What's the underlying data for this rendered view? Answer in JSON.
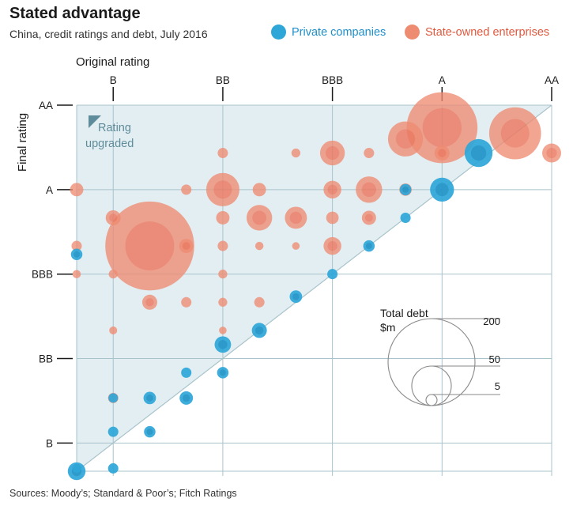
{
  "title": "Stated advantage",
  "subtitle": "China, credit ratings and debt, July 2016",
  "legend": {
    "private_label": "Private companies",
    "soe_label": "State-owned enterprises"
  },
  "colors": {
    "private": "#2EA6D8",
    "soe": "#EE8C72",
    "soe_core": "#E4513A",
    "region": "#E2EEF2",
    "text_teal": "#5F8C9A",
    "grid": "#A9C3CB",
    "title_blue": "#1E8FC9",
    "title_red": "#E0583E"
  },
  "source": "Sources: Moody’s; Standard & Poor’s; Fitch Ratings",
  "chart_data": {
    "type": "scatter",
    "title": "Stated advantage",
    "subtitle": "China, credit ratings and debt, July 2016",
    "xlabel": "Original rating",
    "ylabel": "Final rating",
    "x_ticks": [
      "B",
      "BB",
      "BBB",
      "A",
      "AA"
    ],
    "y_ticks": [
      "AA",
      "A",
      "BBB",
      "BB",
      "B"
    ],
    "rating_scale_note": "Positions are notch indices: 0=B-, 1=B, 2=B+, 3=BB-, 4=BB, 5=BB+, 6=BBB-, 7=BBB, 8=BBB+, 9=A-, 10=A, 11=A+, 12=AA-, 13=AA",
    "xlim": [
      0,
      13
    ],
    "ylim": [
      0,
      13
    ],
    "annotation": "Rating upgraded",
    "size_legend": {
      "title": "Total debt",
      "unit": "$m",
      "values": [
        200,
        50,
        5
      ],
      "labels": [
        "200",
        "50",
        "5"
      ]
    },
    "series": [
      {
        "name": "Private companies",
        "points": [
          {
            "x": 0,
            "y": 0,
            "size": 6
          },
          {
            "x": 0,
            "y": 0.1,
            "size": 1
          },
          {
            "x": 1,
            "y": 0.1,
            "size": 1.5
          },
          {
            "x": 0,
            "y": 7.7,
            "size": 2
          },
          {
            "x": 1,
            "y": 1.4,
            "size": 1.5
          },
          {
            "x": 2,
            "y": 1.4,
            "size": 2
          },
          {
            "x": 2,
            "y": 2.6,
            "size": 2.5
          },
          {
            "x": 3,
            "y": 2.6,
            "size": 3
          },
          {
            "x": 3,
            "y": 3.5,
            "size": 1.5
          },
          {
            "x": 4,
            "y": 3.5,
            "size": 2
          },
          {
            "x": 1,
            "y": 2.6,
            "size": 1.2
          },
          {
            "x": 4,
            "y": 4.5,
            "size": 5
          },
          {
            "x": 5,
            "y": 5,
            "size": 4
          },
          {
            "x": 6,
            "y": 6.2,
            "size": 2.5
          },
          {
            "x": 7,
            "y": 7,
            "size": 1.5
          },
          {
            "x": 8,
            "y": 8,
            "size": 2
          },
          {
            "x": 9,
            "y": 9,
            "size": 1.5
          },
          {
            "x": 10,
            "y": 10,
            "size": 12
          },
          {
            "x": 11,
            "y": 11.3,
            "size": 17
          },
          {
            "x": 9,
            "y": 10,
            "size": 2
          }
        ]
      },
      {
        "name": "State-owned enterprises",
        "points": [
          {
            "x": 2,
            "y": 8,
            "size": 200
          },
          {
            "x": 9,
            "y": 11.8,
            "size": 28
          },
          {
            "x": 10,
            "y": 12.2,
            "size": 125
          },
          {
            "x": 12,
            "y": 12,
            "size": 65
          },
          {
            "x": 13,
            "y": 11.3,
            "size": 7
          },
          {
            "x": 10,
            "y": 11.3,
            "size": 4
          },
          {
            "x": 7,
            "y": 11.3,
            "size": 13
          },
          {
            "x": 8,
            "y": 11.3,
            "size": 1.5
          },
          {
            "x": 6,
            "y": 11.3,
            "size": 1
          },
          {
            "x": 4,
            "y": 11.3,
            "size": 1.5
          },
          {
            "x": 0,
            "y": 10,
            "size": 3
          },
          {
            "x": 3,
            "y": 10,
            "size": 1.5
          },
          {
            "x": 4,
            "y": 10,
            "size": 25
          },
          {
            "x": 5,
            "y": 10,
            "size": 3
          },
          {
            "x": 7,
            "y": 10,
            "size": 6
          },
          {
            "x": 8,
            "y": 10,
            "size": 15
          },
          {
            "x": 9,
            "y": 10,
            "size": 2.5
          },
          {
            "x": 1,
            "y": 9,
            "size": 4
          },
          {
            "x": 4,
            "y": 9,
            "size": 3
          },
          {
            "x": 5,
            "y": 9,
            "size": 14
          },
          {
            "x": 6,
            "y": 9,
            "size": 10
          },
          {
            "x": 7,
            "y": 9,
            "size": 2.5
          },
          {
            "x": 8,
            "y": 9,
            "size": 3.5
          },
          {
            "x": 0,
            "y": 8,
            "size": 1.5
          },
          {
            "x": 3,
            "y": 8,
            "size": 3.5
          },
          {
            "x": 4,
            "y": 8,
            "size": 1.5
          },
          {
            "x": 5,
            "y": 8,
            "size": 0.8
          },
          {
            "x": 6,
            "y": 8,
            "size": 0.6
          },
          {
            "x": 7,
            "y": 8,
            "size": 6
          },
          {
            "x": 0,
            "y": 7,
            "size": 0.8
          },
          {
            "x": 1,
            "y": 7,
            "size": 1
          },
          {
            "x": 4,
            "y": 7,
            "size": 1
          },
          {
            "x": 2,
            "y": 6,
            "size": 4
          },
          {
            "x": 3,
            "y": 6,
            "size": 1.5
          },
          {
            "x": 4,
            "y": 6,
            "size": 1
          },
          {
            "x": 5,
            "y": 6,
            "size": 1.5
          },
          {
            "x": 1,
            "y": 5,
            "size": 0.7
          },
          {
            "x": 4,
            "y": 5,
            "size": 0.6
          },
          {
            "x": 1,
            "y": 2.6,
            "size": 1.5
          }
        ]
      }
    ]
  }
}
